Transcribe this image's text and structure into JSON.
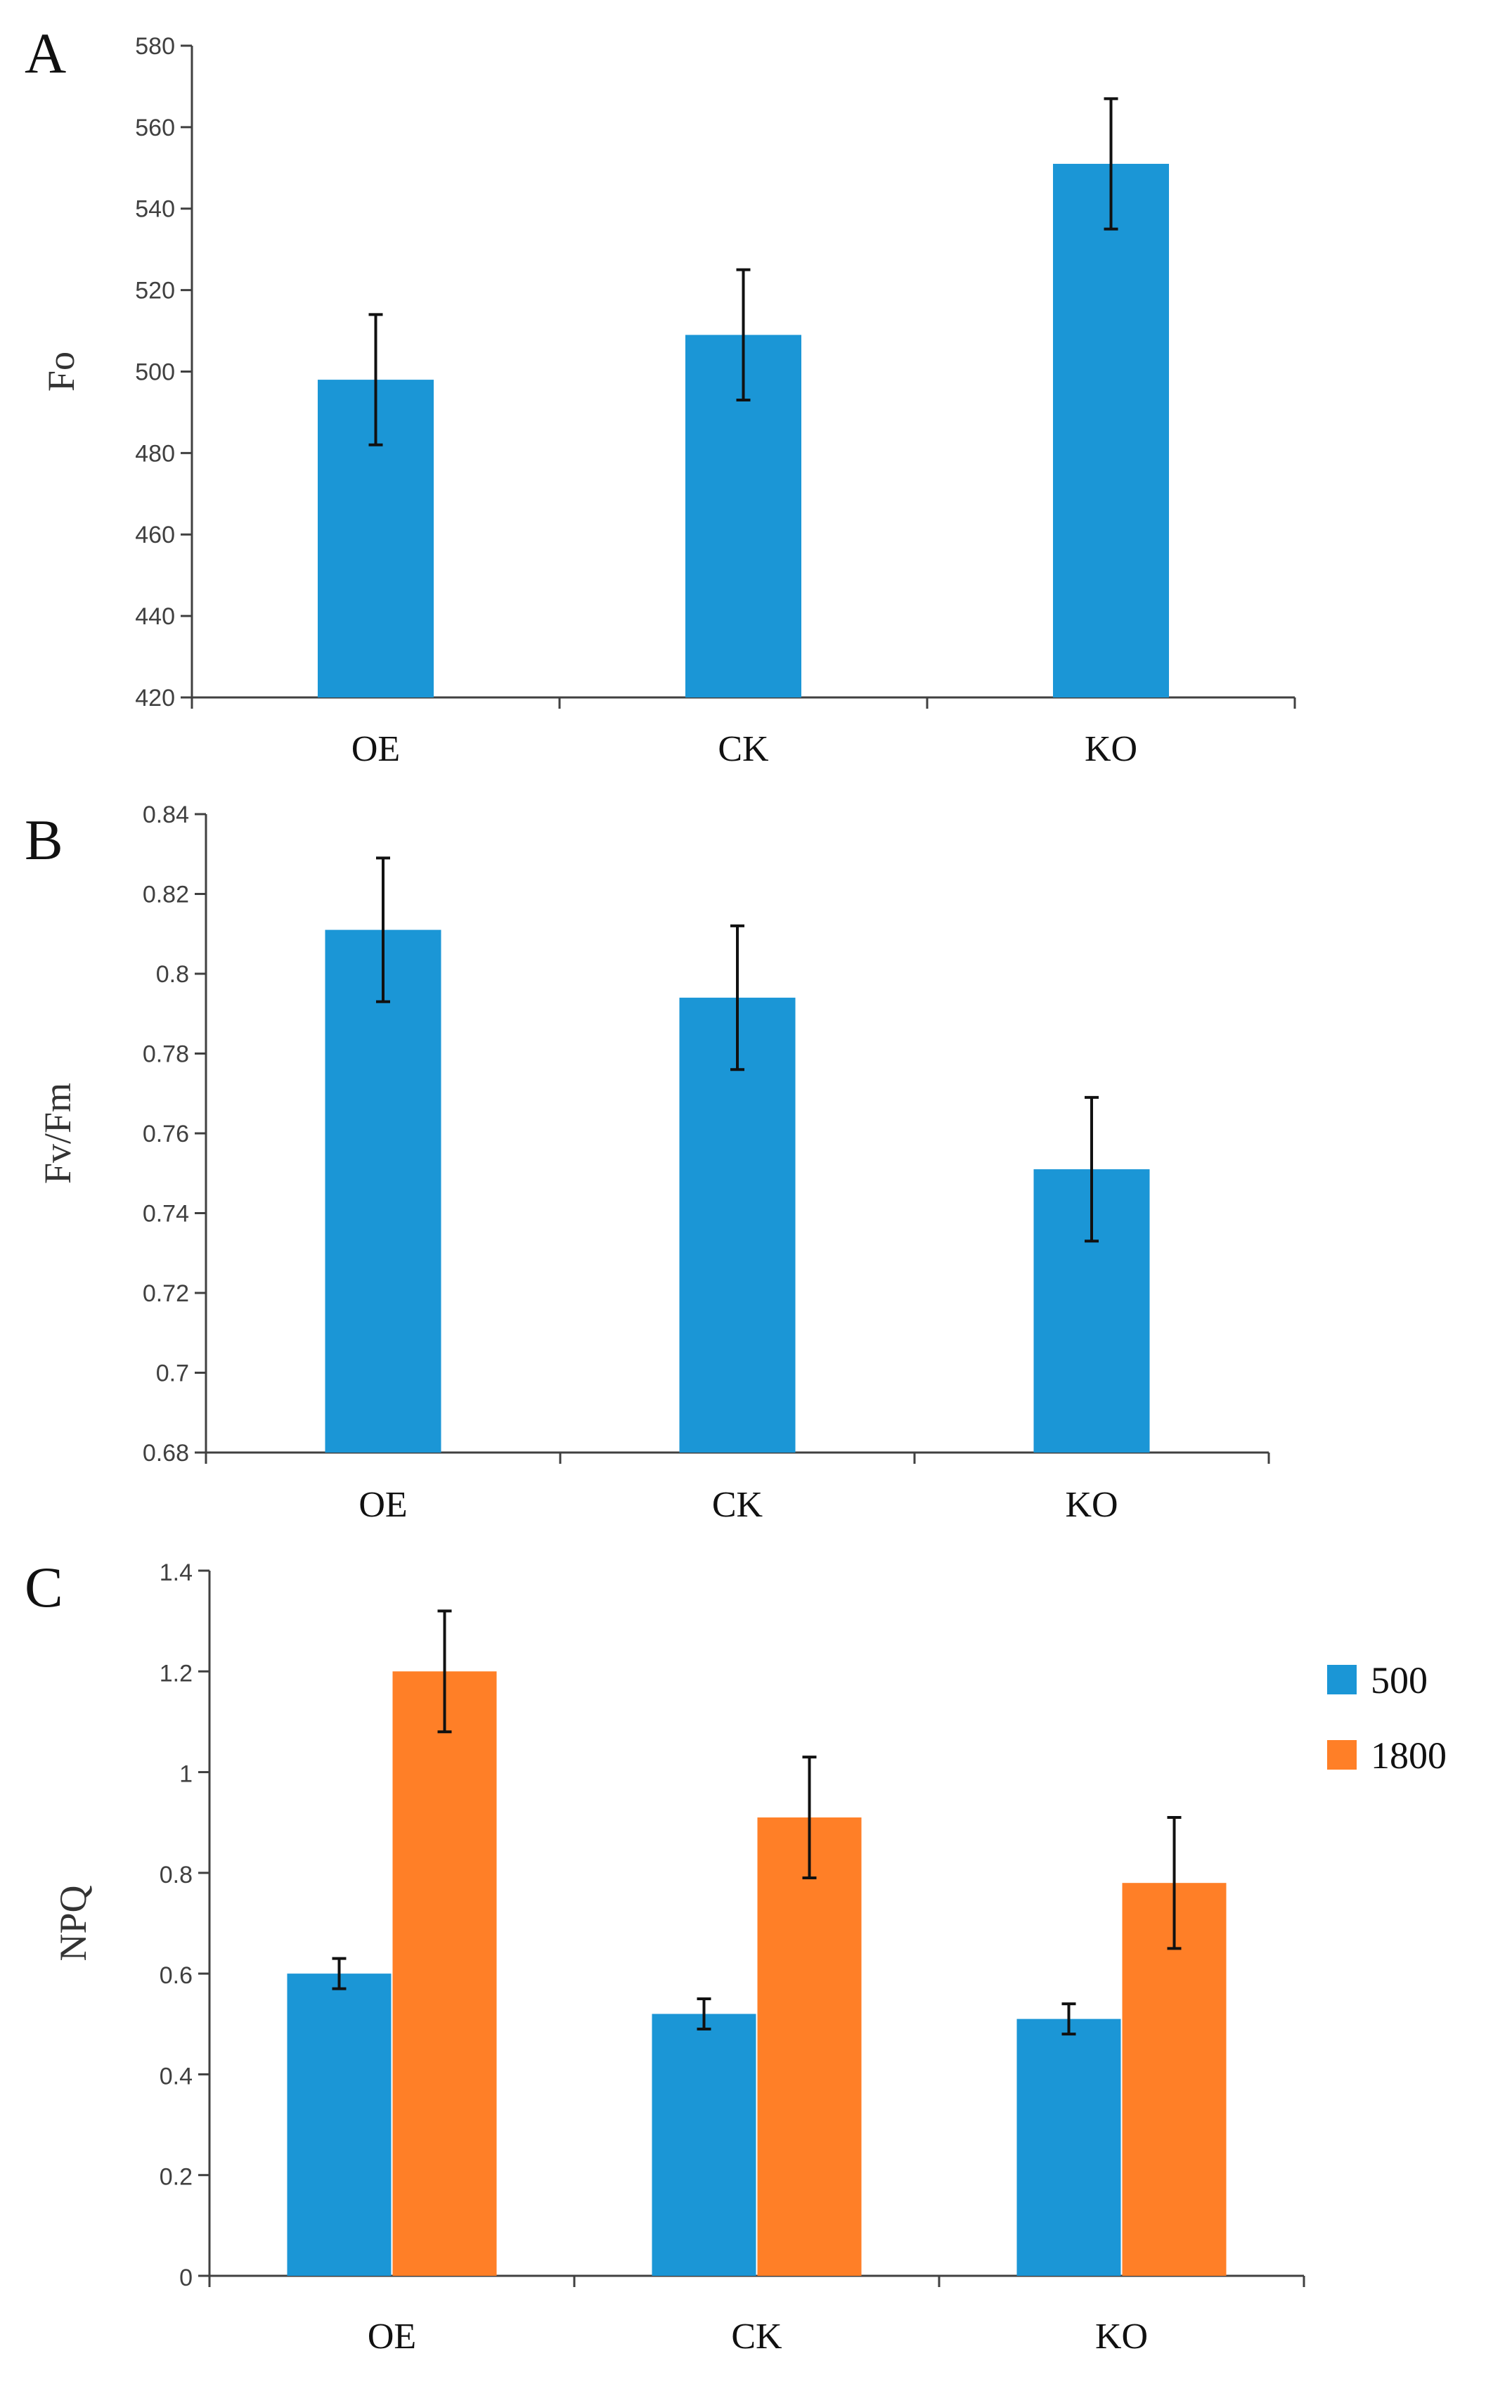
{
  "colors": {
    "series_500": "#1b96d6",
    "series_1800": "#ff7f27",
    "axis": "#404040",
    "error": "#111111"
  },
  "chart_data": [
    {
      "panel": "A",
      "type": "bar",
      "ylabel": "Fo",
      "categories": [
        "OE",
        "CK",
        "KO"
      ],
      "series": [
        {
          "name": "",
          "values": [
            498,
            509,
            551
          ],
          "errors": [
            16,
            16,
            16
          ]
        }
      ],
      "ylim": [
        420,
        580
      ],
      "yticks": [
        420,
        440,
        460,
        480,
        500,
        520,
        540,
        560,
        580
      ],
      "ytick_labels": [
        "420",
        "440",
        "460",
        "480",
        "500",
        "520",
        "540",
        "560",
        "580"
      ]
    },
    {
      "panel": "B",
      "type": "bar",
      "ylabel": "Fv/Fm",
      "categories": [
        "OE",
        "CK",
        "KO"
      ],
      "series": [
        {
          "name": "",
          "values": [
            0.811,
            0.794,
            0.751
          ],
          "errors": [
            0.018,
            0.018,
            0.018
          ]
        }
      ],
      "ylim": [
        0.68,
        0.84
      ],
      "yticks": [
        0.68,
        0.7,
        0.72,
        0.74,
        0.76,
        0.78,
        0.8,
        0.82,
        0.84
      ],
      "ytick_labels": [
        "0.68",
        "0.7",
        "0.72",
        "0.74",
        "0.76",
        "0.78",
        "0.8",
        "0.82",
        "0.84"
      ]
    },
    {
      "panel": "C",
      "type": "bar",
      "ylabel": "NPQ",
      "categories": [
        "OE",
        "CK",
        "KO"
      ],
      "series": [
        {
          "name": "500",
          "values": [
            0.6,
            0.52,
            0.51
          ],
          "errors": [
            0.03,
            0.03,
            0.03
          ]
        },
        {
          "name": "1800",
          "values": [
            1.2,
            0.91,
            0.78
          ],
          "errors": [
            0.12,
            0.12,
            0.13
          ]
        }
      ],
      "ylim": [
        0,
        1.4
      ],
      "yticks": [
        0,
        0.2,
        0.4,
        0.6,
        0.8,
        1.0,
        1.2,
        1.4
      ],
      "ytick_labels": [
        "0",
        "0.2",
        "0.4",
        "0.6",
        "0.8",
        "1",
        "1.2",
        "1.4"
      ],
      "legend_position": "right"
    }
  ]
}
